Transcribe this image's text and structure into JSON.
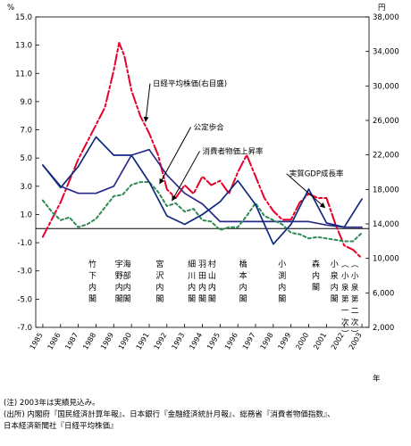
{
  "chart_data": {
    "type": "line",
    "left_axis_unit": "%",
    "right_axis_unit": "円",
    "x_axis_unit": "年",
    "x": [
      1985,
      1986,
      1987,
      1988,
      1989,
      1990,
      1991,
      1992,
      1993,
      1994,
      1995,
      1996,
      1997,
      1998,
      1999,
      2000,
      2001,
      2002,
      2003
    ],
    "ylim_left": [
      -7.0,
      15.0
    ],
    "ylim_right": [
      2000,
      38000
    ],
    "y_ticks_left": [
      "15.0",
      "13.0",
      "11.0",
      "9.0",
      "7.0",
      "5.0",
      "3.0",
      "1.0",
      "-1.0",
      "-3.0",
      "-5.0",
      "-7.0"
    ],
    "y_ticks_right": [
      "38,000",
      "34,000",
      "30,000",
      "26,000",
      "22,000",
      "18,000",
      "14,000",
      "10,000",
      "6,000",
      "2,000"
    ],
    "x_tick_labels": [
      "1985",
      "1986",
      "1987",
      "1988",
      "1989",
      "1990",
      "1991",
      "1992",
      "1993",
      "1994",
      "1995",
      "1996",
      "1997",
      "1998",
      "1999",
      "2000",
      "2001",
      "2002",
      "2003"
    ],
    "series": [
      {
        "name": "日経平均株価(右目盛)",
        "axis": "right",
        "color": "#e8002a",
        "style": "dashdot",
        "x": [
          1985.0,
          1986.0,
          1987.0,
          1987.5,
          1988.0,
          1988.5,
          1989.0,
          1989.3,
          1989.6,
          1990.0,
          1990.5,
          1991.0,
          1991.5,
          1992.0,
          1992.5,
          1993.0,
          1993.5,
          1994.0,
          1994.5,
          1995.0,
          1995.5,
          1996.0,
          1996.5,
          1997.0,
          1997.5,
          1998.0,
          1998.5,
          1999.0,
          1999.5,
          2000.0,
          2000.5,
          2001.0,
          2001.5,
          2002.0,
          2002.5,
          2003.0
        ],
        "values": [
          12500,
          16500,
          21500,
          23500,
          25500,
          27500,
          31800,
          35000,
          33500,
          29500,
          26500,
          24500,
          22000,
          18000,
          17000,
          18500,
          17500,
          19500,
          18500,
          19000,
          17500,
          20000,
          22000,
          19500,
          17000,
          15500,
          14500,
          14500,
          16500,
          17500,
          17000,
          17000,
          14000,
          11500,
          11000,
          10000
        ]
      },
      {
        "name": "公定歩合",
        "axis": "left",
        "color": "#2a2a8a",
        "style": "solid",
        "x": [
          1985.0,
          1986.0,
          1987.0,
          1988.0,
          1989.0,
          1990.0,
          1991.0,
          1992.0,
          1993.0,
          1994.0,
          1995.0,
          1996.0,
          1997.0,
          1998.0,
          1999.0,
          2000.0,
          2001.0,
          2002.0,
          2003.0
        ],
        "values": [
          4.5,
          3.0,
          2.5,
          2.5,
          3.0,
          5.2,
          5.6,
          3.8,
          2.5,
          1.75,
          0.5,
          0.5,
          0.5,
          0.5,
          0.5,
          0.5,
          0.25,
          0.1,
          0.1
        ]
      },
      {
        "name": "消費者物価上昇率",
        "axis": "left",
        "color": "#2f8a52",
        "style": "dotted",
        "x": [
          1985.0,
          1985.5,
          1986.0,
          1986.5,
          1987.0,
          1987.5,
          1988.0,
          1988.5,
          1989.0,
          1989.5,
          1990.0,
          1990.5,
          1991.0,
          1991.5,
          1992.0,
          1992.5,
          1993.0,
          1993.5,
          1994.0,
          1994.5,
          1995.0,
          1995.5,
          1996.0,
          1996.5,
          1997.0,
          1997.5,
          1998.0,
          1998.5,
          1999.0,
          1999.5,
          2000.0,
          2000.5,
          2001.0,
          2001.5,
          2002.0,
          2002.5,
          2003.0
        ],
        "values": [
          2.0,
          1.2,
          0.6,
          0.8,
          0.1,
          0.3,
          0.7,
          1.5,
          2.3,
          2.4,
          3.1,
          3.3,
          3.3,
          2.6,
          1.6,
          1.8,
          1.2,
          1.4,
          0.6,
          0.5,
          -0.1,
          0.1,
          0.1,
          0.9,
          1.8,
          0.9,
          0.6,
          0.3,
          -0.3,
          -0.4,
          -0.7,
          -0.6,
          -0.7,
          -0.8,
          -0.9,
          -0.9,
          -0.3
        ]
      },
      {
        "name": "実質GDP成長率",
        "axis": "left",
        "color": "#0e2a80",
        "style": "solid",
        "x": [
          1985.0,
          1986.0,
          1987.0,
          1988.0,
          1989.0,
          1990.0,
          1991.0,
          1992.0,
          1993.0,
          1994.0,
          1995.0,
          1996.0,
          1997.0,
          1998.0,
          1999.0,
          2000.0,
          2001.0,
          2002.0,
          2003.0
        ],
        "values": [
          4.5,
          2.9,
          4.4,
          6.5,
          5.2,
          5.2,
          3.3,
          0.9,
          0.3,
          1.0,
          1.9,
          3.4,
          1.7,
          -1.1,
          0.3,
          2.8,
          0.4,
          0.1,
          2.1
        ]
      }
    ],
    "annotations": [
      {
        "text": "日経平均株価(右目盛)",
        "x": 1991.2,
        "y": 10.1
      },
      {
        "text": "公定歩合",
        "x": 1993.5,
        "y": 7.0
      },
      {
        "text": "消費者物価上昇率",
        "x": 1994.0,
        "y": 5.3
      },
      {
        "text": "実質GDP成長率",
        "x": 1998.9,
        "y": 3.7
      }
    ],
    "cabinet_labels": [
      {
        "text": "竹下内閣",
        "x": 1987.8
      },
      {
        "text": "宇野内閣",
        "x": 1989.3
      },
      {
        "text": "海部内閣",
        "x": 1989.75
      },
      {
        "text": "宮沢内閣",
        "x": 1991.6
      },
      {
        "text": "細川内閣",
        "x": 1993.4
      },
      {
        "text": "羽田内閣",
        "x": 1994.0
      },
      {
        "text": "村山内閣",
        "x": 1994.55
      },
      {
        "text": "橋本内閣",
        "x": 1996.3
      },
      {
        "text": "小渕内閣",
        "x": 1998.5
      },
      {
        "text": "森内閣",
        "x": 2000.4
      },
      {
        "text": "小泉内閣",
        "x": 2001.45
      },
      {
        "text": "(小泉第一次)",
        "x": 2002.05
      },
      {
        "text": "(小泉第二次)",
        "x": 2002.6
      }
    ]
  },
  "notes": [
    "(注) 2003年は実績見込み。",
    "(出所) 内閣府『国民経済計算年報』、日本銀行『金融経済統計月報』、総務省『消費者物価指数』、",
    "日本経済新聞社『日経平均株価』"
  ]
}
